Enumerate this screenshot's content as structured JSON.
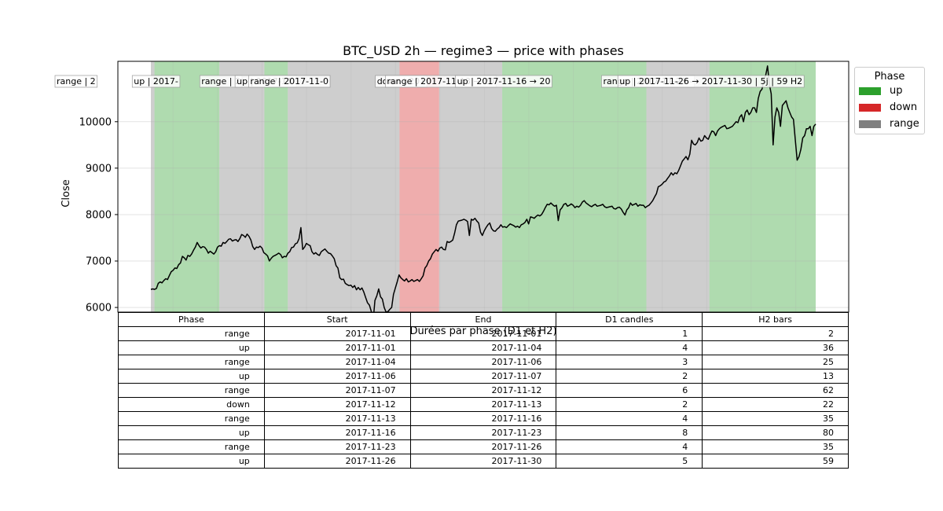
{
  "chart_data": {
    "type": "line",
    "title": "BTC_USD 2h — regime3 — price with phases",
    "ylabel": "Close",
    "xlabel": "",
    "ylim": [
      5900,
      11300
    ],
    "yticks": [
      6000,
      7000,
      8000,
      9000,
      10000
    ],
    "grid": true,
    "x_range": [
      "2017-11-01",
      "2017-11-30 22:00"
    ],
    "phase_colors": {
      "up": "#2ca02c",
      "down": "#d62728",
      "range": "#7f7f7f"
    },
    "legend": {
      "title": "Phase",
      "placement": "outside-right",
      "items": [
        {
          "label": "up",
          "color": "#2ca02c"
        },
        {
          "label": "down",
          "color": "#d62728"
        },
        {
          "label": "range",
          "color": "#7f7f7f"
        }
      ]
    },
    "phases": [
      {
        "phase": "range",
        "start": "2017-11-01",
        "end": "2017-11-01",
        "d1": 1,
        "h2": 2,
        "label": "range | 2"
      },
      {
        "phase": "up",
        "start": "2017-11-01",
        "end": "2017-11-04",
        "d1": 4,
        "h2": 36,
        "label": "up | 2017-"
      },
      {
        "phase": "range",
        "start": "2017-11-04",
        "end": "2017-11-06",
        "d1": 3,
        "h2": 25,
        "label": "range | 2"
      },
      {
        "phase": "up",
        "start": "2017-11-06",
        "end": "2017-11-07",
        "d1": 2,
        "h2": 13,
        "label": "up | 2017-11-"
      },
      {
        "phase": "range",
        "start": "2017-11-07",
        "end": "2017-11-12",
        "d1": 6,
        "h2": 62,
        "label": "range | 2017-11-0"
      },
      {
        "phase": "down",
        "start": "2017-11-12",
        "end": "2017-11-13",
        "d1": 2,
        "h2": 22,
        "label": "down | 201"
      },
      {
        "phase": "range",
        "start": "2017-11-13",
        "end": "2017-11-16",
        "d1": 4,
        "h2": 35,
        "label": "range | 2017-11-13 → 20"
      },
      {
        "phase": "up",
        "start": "2017-11-16",
        "end": "2017-11-23",
        "d1": 8,
        "h2": 80,
        "label": "up | 2017-11-16 → 20"
      },
      {
        "phase": "range",
        "start": "2017-11-23",
        "end": "2017-11-26",
        "d1": 4,
        "h2": 35,
        "label": "range | 2017-11-23 -"
      },
      {
        "phase": "up",
        "start": "2017-11-26",
        "end": "2017-11-30",
        "d1": 5,
        "h2": 59,
        "label": "up | 2017-11-26 → 2017-11-30 | 5j | 59 H2"
      }
    ],
    "series": [
      {
        "values": [
          6390,
          6400,
          6390,
          6410,
          6520,
          6550,
          6530,
          6580,
          6620,
          6600,
          6690,
          6770,
          6800,
          6850,
          6840,
          6920,
          6960,
          7100,
          7070,
          7020,
          7120,
          7100,
          7150,
          7230,
          7300,
          7400,
          7330,
          7280,
          7310,
          7300,
          7250,
          7170,
          7210,
          7180,
          7150,
          7200,
          7300,
          7330,
          7320,
          7400,
          7380,
          7420,
          7470,
          7480,
          7430,
          7450,
          7460,
          7420,
          7480,
          7570,
          7550,
          7510,
          7580,
          7530,
          7450,
          7310,
          7250,
          7300,
          7290,
          7320,
          7280,
          7180,
          7150,
          7110,
          7000,
          7060,
          7100,
          7120,
          7140,
          7170,
          7140,
          7070,
          7100,
          7090,
          7170,
          7200,
          7290,
          7300,
          7370,
          7390,
          7480,
          7720,
          7250,
          7300,
          7380,
          7350,
          7330,
          7200,
          7150,
          7180,
          7140,
          7120,
          7200,
          7230,
          7260,
          7210,
          7170,
          7160,
          7110,
          7050,
          6900,
          6850,
          6640,
          6600,
          6610,
          6520,
          6490,
          6470,
          6480,
          6430,
          6470,
          6380,
          6430,
          6380,
          6420,
          6330,
          6210,
          6100,
          6050,
          5920,
          5700,
          6150,
          6250,
          6400,
          6230,
          6180,
          6000,
          5900,
          5910,
          5960,
          6000,
          6280,
          6420,
          6550,
          6700,
          6640,
          6600,
          6570,
          6620,
          6550,
          6570,
          6600,
          6560,
          6580,
          6600,
          6560,
          6620,
          6680,
          6850,
          6900,
          7000,
          7050,
          7150,
          7200,
          7250,
          7210,
          7280,
          7300,
          7250,
          7240,
          7420,
          7400,
          7420,
          7450,
          7600,
          7780,
          7860,
          7870,
          7880,
          7900,
          7880,
          7850,
          7550,
          7900,
          7880,
          7920,
          7860,
          7820,
          7620,
          7550,
          7650,
          7720,
          7780,
          7820,
          7700,
          7650,
          7640,
          7690,
          7720,
          7780,
          7730,
          7740,
          7720,
          7760,
          7800,
          7780,
          7760,
          7730,
          7750,
          7720,
          7780,
          7800,
          7830,
          7900,
          7800,
          7950,
          7940,
          7920,
          7960,
          7990,
          7970,
          8000,
          8070,
          8150,
          8220,
          8210,
          8250,
          8210,
          8180,
          8200,
          7870,
          8100,
          8150,
          8220,
          8240,
          8180,
          8200,
          8230,
          8200,
          8150,
          8180,
          8160,
          8200,
          8270,
          8300,
          8250,
          8220,
          8190,
          8170,
          8200,
          8220,
          8180,
          8190,
          8200,
          8220,
          8170,
          8150,
          8160,
          8170,
          8180,
          8130,
          8120,
          8150,
          8160,
          8120,
          8050,
          7990,
          8100,
          8150,
          8250,
          8200,
          8220,
          8240,
          8180,
          8210,
          8200,
          8200,
          8150,
          8180,
          8200,
          8250,
          8300,
          8380,
          8450,
          8600,
          8620,
          8650,
          8700,
          8720,
          8780,
          8830,
          8900,
          8850,
          8900,
          8880,
          8950,
          9050,
          9150,
          9200,
          9250,
          9180,
          9300,
          9600,
          9520,
          9500,
          9550,
          9650,
          9580,
          9600,
          9700,
          9650,
          9620,
          9720,
          9800,
          9780,
          9700,
          9800,
          9850,
          9880,
          9900,
          9920,
          9850,
          9860,
          9880,
          9900,
          9950,
          10000,
          9980,
          10100,
          10150,
          10000,
          10200,
          10250,
          10150,
          10200,
          10300,
          10300,
          10200,
          10500,
          10650,
          10700,
          10900,
          11000,
          11200,
          10800,
          10600,
          9500,
          10100,
          10300,
          10200,
          9900,
          10350,
          10400,
          10450,
          10300,
          10200,
          10100,
          10050,
          9600,
          9170,
          9250,
          9400,
          9650,
          9700,
          9850,
          9850,
          9900,
          9700,
          9900,
          9950
        ]
      }
    ]
  },
  "table": {
    "title": "Durées par phase (D1 et H2)",
    "headers": [
      "Phase",
      "Start",
      "End",
      "D1 candles",
      "H2 bars"
    ],
    "rows": [
      [
        "range",
        "2017-11-01",
        "2017-11-01",
        "1",
        "2"
      ],
      [
        "up",
        "2017-11-01",
        "2017-11-04",
        "4",
        "36"
      ],
      [
        "range",
        "2017-11-04",
        "2017-11-06",
        "3",
        "25"
      ],
      [
        "up",
        "2017-11-06",
        "2017-11-07",
        "2",
        "13"
      ],
      [
        "range",
        "2017-11-07",
        "2017-11-12",
        "6",
        "62"
      ],
      [
        "down",
        "2017-11-12",
        "2017-11-13",
        "2",
        "22"
      ],
      [
        "range",
        "2017-11-13",
        "2017-11-16",
        "4",
        "35"
      ],
      [
        "up",
        "2017-11-16",
        "2017-11-23",
        "8",
        "80"
      ],
      [
        "range",
        "2017-11-23",
        "2017-11-26",
        "4",
        "35"
      ],
      [
        "up",
        "2017-11-26",
        "2017-11-30",
        "5",
        "59"
      ]
    ]
  }
}
